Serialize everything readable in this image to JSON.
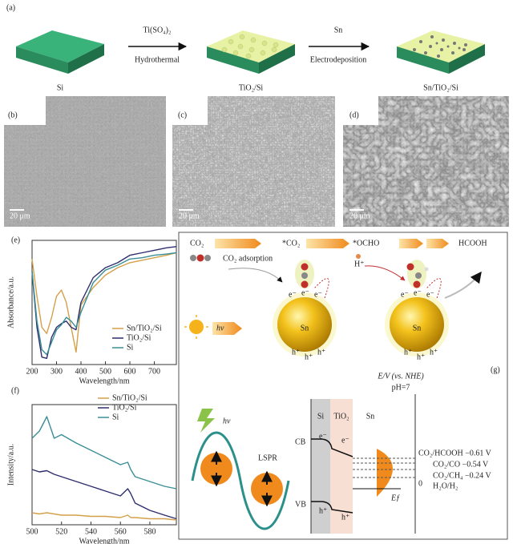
{
  "panel_a": {
    "label": "(a)",
    "blocks": [
      "Si",
      "TiO₂/Si",
      "Sn/TiO₂/Si"
    ],
    "step1_reagent": "Ti(SO₄)₂",
    "step1_method": "Hydrothermal",
    "step2_reagent": "Sn",
    "step2_method": "Electrodeposition"
  },
  "panel_b": {
    "label": "(b)",
    "scale": "20 μm"
  },
  "panel_c": {
    "label": "(c)",
    "scale": "20 μm"
  },
  "panel_d": {
    "label": "(d)",
    "scale": "20 μm"
  },
  "chart_data": [
    {
      "type": "line",
      "label": "(e)",
      "x_label": "Wavelength/nm",
      "y_label": "Absorbance/a.u.",
      "xlim": [
        200,
        790
      ],
      "ylim": [
        0,
        1
      ],
      "xticks": [
        200,
        300,
        400,
        500,
        600,
        700
      ],
      "x": [
        200,
        220,
        240,
        260,
        280,
        300,
        320,
        340,
        360,
        380,
        400,
        450,
        500,
        550,
        600,
        650,
        700,
        750,
        790
      ],
      "series": [
        {
          "name": "Sn/TiO₂/Si",
          "color": "#d4a04a",
          "values": [
            0.85,
            0.55,
            0.3,
            0.25,
            0.38,
            0.55,
            0.6,
            0.5,
            0.3,
            0.1,
            0.48,
            0.62,
            0.72,
            0.78,
            0.82,
            0.84,
            0.86,
            0.88,
            0.9
          ]
        },
        {
          "name": "TiO₂/Si",
          "color": "#2e2e6e",
          "values": [
            0.75,
            0.3,
            0.06,
            0.05,
            0.22,
            0.3,
            0.33,
            0.35,
            0.3,
            0.28,
            0.5,
            0.7,
            0.78,
            0.82,
            0.88,
            0.9,
            0.92,
            0.94,
            0.95
          ]
        },
        {
          "name": "Si",
          "color": "#3a8f96",
          "values": [
            0.75,
            0.35,
            0.12,
            0.08,
            0.18,
            0.28,
            0.32,
            0.38,
            0.35,
            0.3,
            0.42,
            0.66,
            0.76,
            0.8,
            0.85,
            0.86,
            0.88,
            0.89,
            0.9
          ]
        }
      ]
    },
    {
      "type": "line",
      "label": "(f)",
      "x_label": "Wavelength/nm",
      "y_label": "Intensity/a.u.",
      "xlim": [
        500,
        598
      ],
      "ylim": [
        0,
        1
      ],
      "xticks": [
        500,
        520,
        540,
        560,
        580
      ],
      "x": [
        500,
        505,
        510,
        515,
        520,
        530,
        540,
        550,
        560,
        565,
        567,
        570,
        580,
        590,
        598
      ],
      "series": [
        {
          "name": "Sn/TiO₂/Si",
          "color": "#d4a04a",
          "values": [
            0.1,
            0.09,
            0.1,
            0.09,
            0.08,
            0.08,
            0.07,
            0.07,
            0.06,
            0.08,
            0.06,
            0.06,
            0.05,
            0.05,
            0.04
          ]
        },
        {
          "name": "TiO₂/Si",
          "color": "#2e2e6e",
          "values": [
            0.46,
            0.44,
            0.45,
            0.42,
            0.4,
            0.36,
            0.32,
            0.28,
            0.24,
            0.3,
            0.26,
            0.18,
            0.12,
            0.08,
            0.05
          ]
        },
        {
          "name": "Si",
          "color": "#3a8f96",
          "values": [
            0.72,
            0.78,
            0.9,
            0.72,
            0.75,
            0.68,
            0.62,
            0.56,
            0.5,
            0.52,
            0.46,
            0.4,
            0.36,
            0.32,
            0.3
          ]
        }
      ]
    }
  ],
  "panel_g": {
    "label": "(g)",
    "co2": "CO₂",
    "adsorption": "CO₂ adsorption",
    "co2_ads": "*CO₂",
    "ocho": "*OCHO",
    "proton": "H⁺",
    "product": "HCOOH",
    "light": [
      "hν",
      "hν"
    ],
    "metal": [
      "Sn",
      "Sn"
    ],
    "electrons": [
      "e⁻",
      "e⁻",
      "e⁻",
      "e⁻",
      "e⁻",
      "e⁻",
      "e⁻",
      "e⁻"
    ],
    "holes": [
      "h⁺",
      "h⁺",
      "h⁺",
      "h⁺",
      "h⁺",
      "h⁺",
      "h⁺",
      "h⁺"
    ],
    "lspr": "LSPR",
    "axis": "E/V (vs. NHE)",
    "ph": "pH=7",
    "layers": [
      "Si",
      "TiO₂",
      "Sn"
    ],
    "cb": "CB",
    "vb": "VB",
    "fermi": "Eƒ",
    "zero": "0",
    "redox": [
      "CO₂/HCOOH −0.61 V",
      "CO₂/CO −0.54 V",
      "CO₂/CH₄ −0.24 V",
      "H₂O/H₂"
    ]
  }
}
